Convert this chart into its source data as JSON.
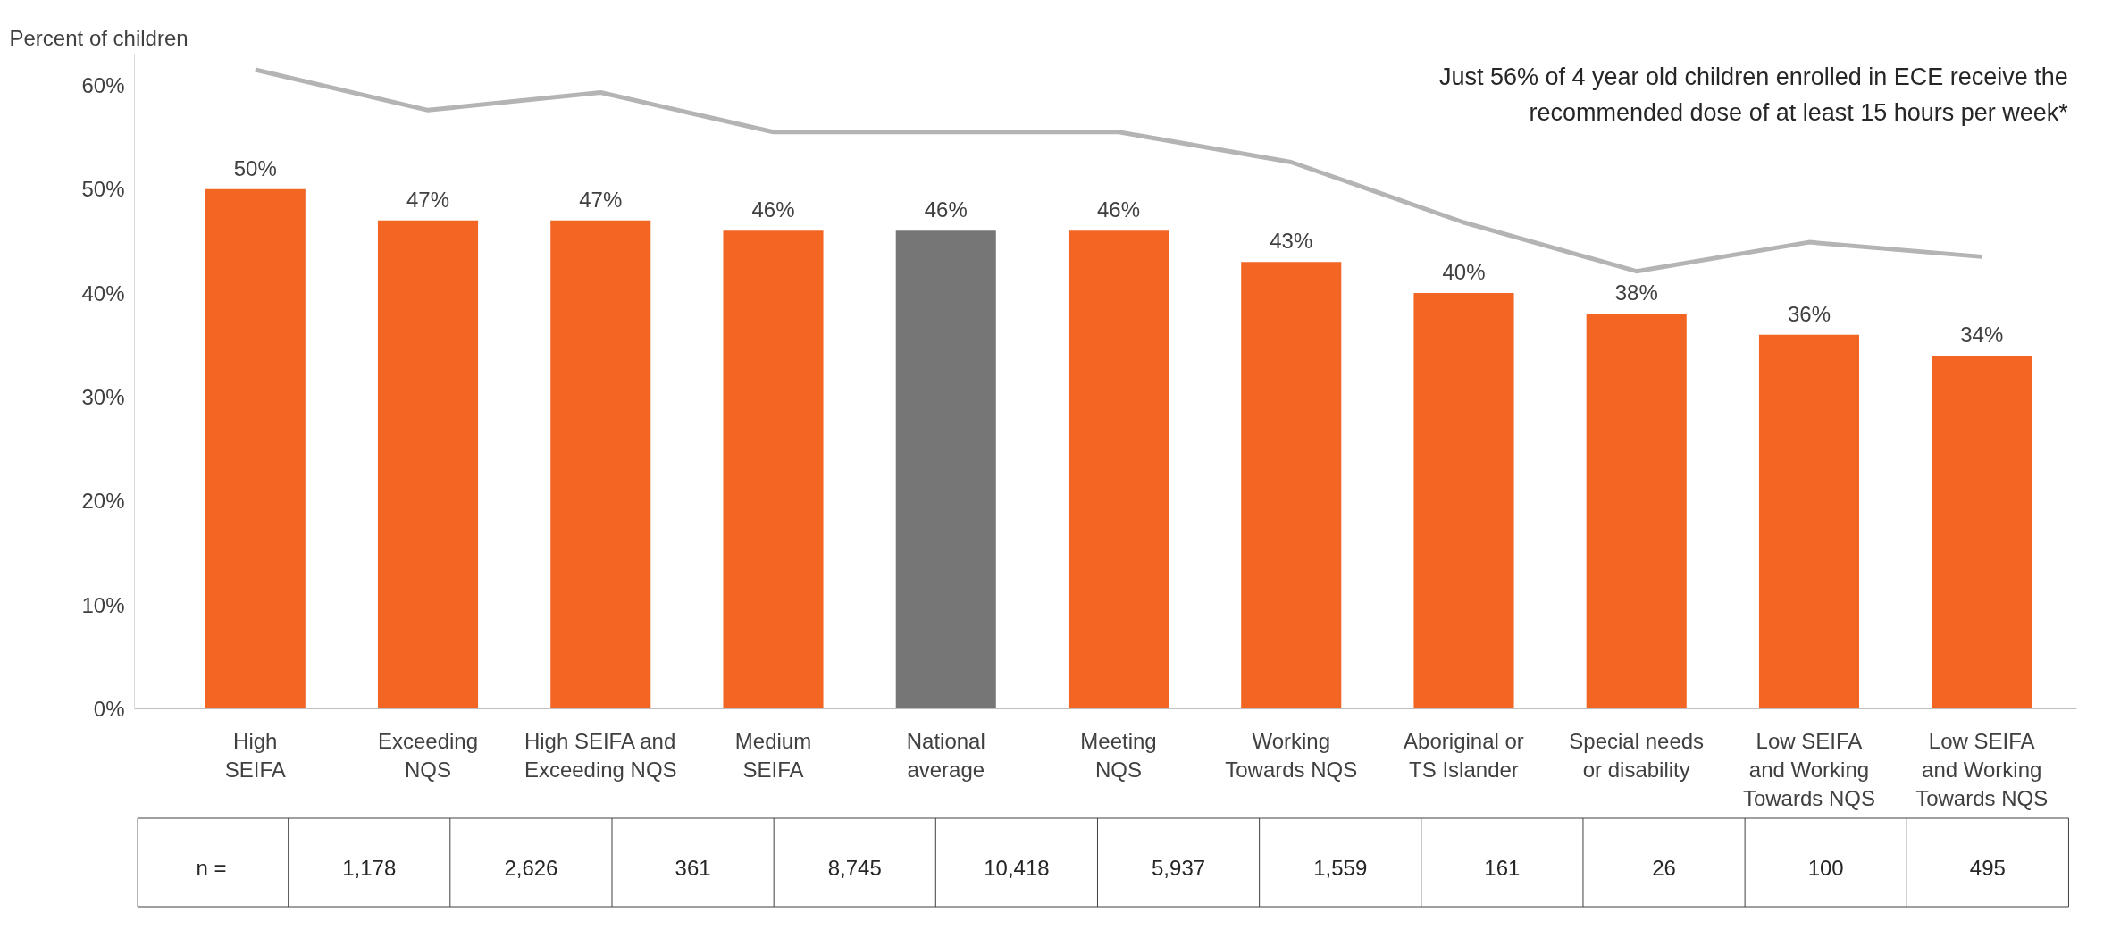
{
  "chart_data": {
    "type": "bar",
    "ylabel": "Percent of children",
    "categories": [
      "High\nSEIFA",
      "Exceeding\nNQS",
      "High SEIFA and\nExceeding NQS",
      "Medium\nSEIFA",
      "National\naverage",
      "Meeting\nNQS",
      "Working\nTowards NQS",
      "Aboriginal or\nTS Islander",
      "Special needs\nor disability",
      "Low SEIFA\nand Working\nTowards NQS",
      "Low SEIFA\nand Working\nTowards NQS"
    ],
    "series": [
      {
        "colors": [
          "#f26522",
          "#f26522",
          "#f26522",
          "#f26522",
          "#767676",
          "#f26522",
          "#f26522",
          "#f26522",
          "#f26522",
          "#f26522",
          "#f26522"
        ],
        "values": [
          50,
          47,
          47,
          46,
          46,
          46,
          43,
          40,
          38,
          36,
          34
        ],
        "value_labels": [
          "50%",
          "47%",
          "47%",
          "46%",
          "46%",
          "46%",
          "43%",
          "40%",
          "38%",
          "36%",
          "34%"
        ]
      },
      {
        "type": "line",
        "color": "#b4b4b4",
        "values": [
          61.5,
          57.6,
          59.3,
          55.5,
          55.5,
          55.5,
          52.6,
          46.8,
          42.1,
          44.9,
          43.5
        ]
      }
    ],
    "ylim": [
      0,
      63
    ],
    "yticks": [
      {
        "value": 0,
        "label": "0%"
      },
      {
        "value": 10,
        "label": "10%"
      },
      {
        "value": 20,
        "label": "20%"
      },
      {
        "value": 30,
        "label": "30%"
      },
      {
        "value": 40,
        "label": "40%"
      },
      {
        "value": 50,
        "label": "50%"
      },
      {
        "value": 60,
        "label": "60%"
      }
    ],
    "grid": false,
    "annotations": [
      "Just 56% of 4 year old children enrolled in ECE receive the recommended dose of at least 15 hours per week*",
      "n =",
      "1,178",
      "2,626",
      "361",
      "8,745",
      "10,418",
      "5,937",
      "1,559",
      "161",
      "26",
      "100",
      "495"
    ]
  }
}
